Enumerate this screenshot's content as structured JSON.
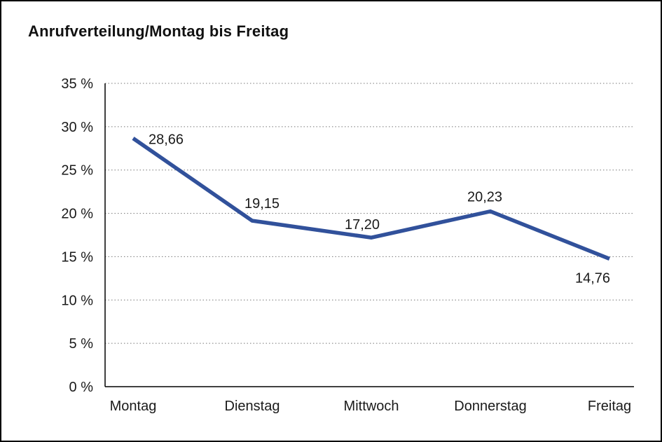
{
  "title": "Anrufverteilung/Montag bis Freitag",
  "chart_data": {
    "type": "line",
    "title": "Anrufverteilung/Montag bis Freitag",
    "categories": [
      "Montag",
      "Dienstag",
      "Mittwoch",
      "Donnerstag",
      "Freitag"
    ],
    "values": [
      28.66,
      19.15,
      17.2,
      20.23,
      14.76
    ],
    "value_labels": [
      "28,66",
      "19,15",
      "17,20",
      "20,23",
      "14,76"
    ],
    "xlabel": "",
    "ylabel": "",
    "ylim": [
      0,
      35
    ],
    "ytick_step": 5,
    "ytick_labels": [
      "0 %",
      "5 %",
      "10 %",
      "15 %",
      "20 %",
      "25 %",
      "30 %",
      "35 %"
    ],
    "unit": "%",
    "grid": "dotted-horizontal",
    "legend": "none",
    "line_color": "#31519b",
    "axis_color": "#000000",
    "gridline_color": "#777777",
    "text_color": "#1a1a1a",
    "background_color": "#ffffff"
  }
}
